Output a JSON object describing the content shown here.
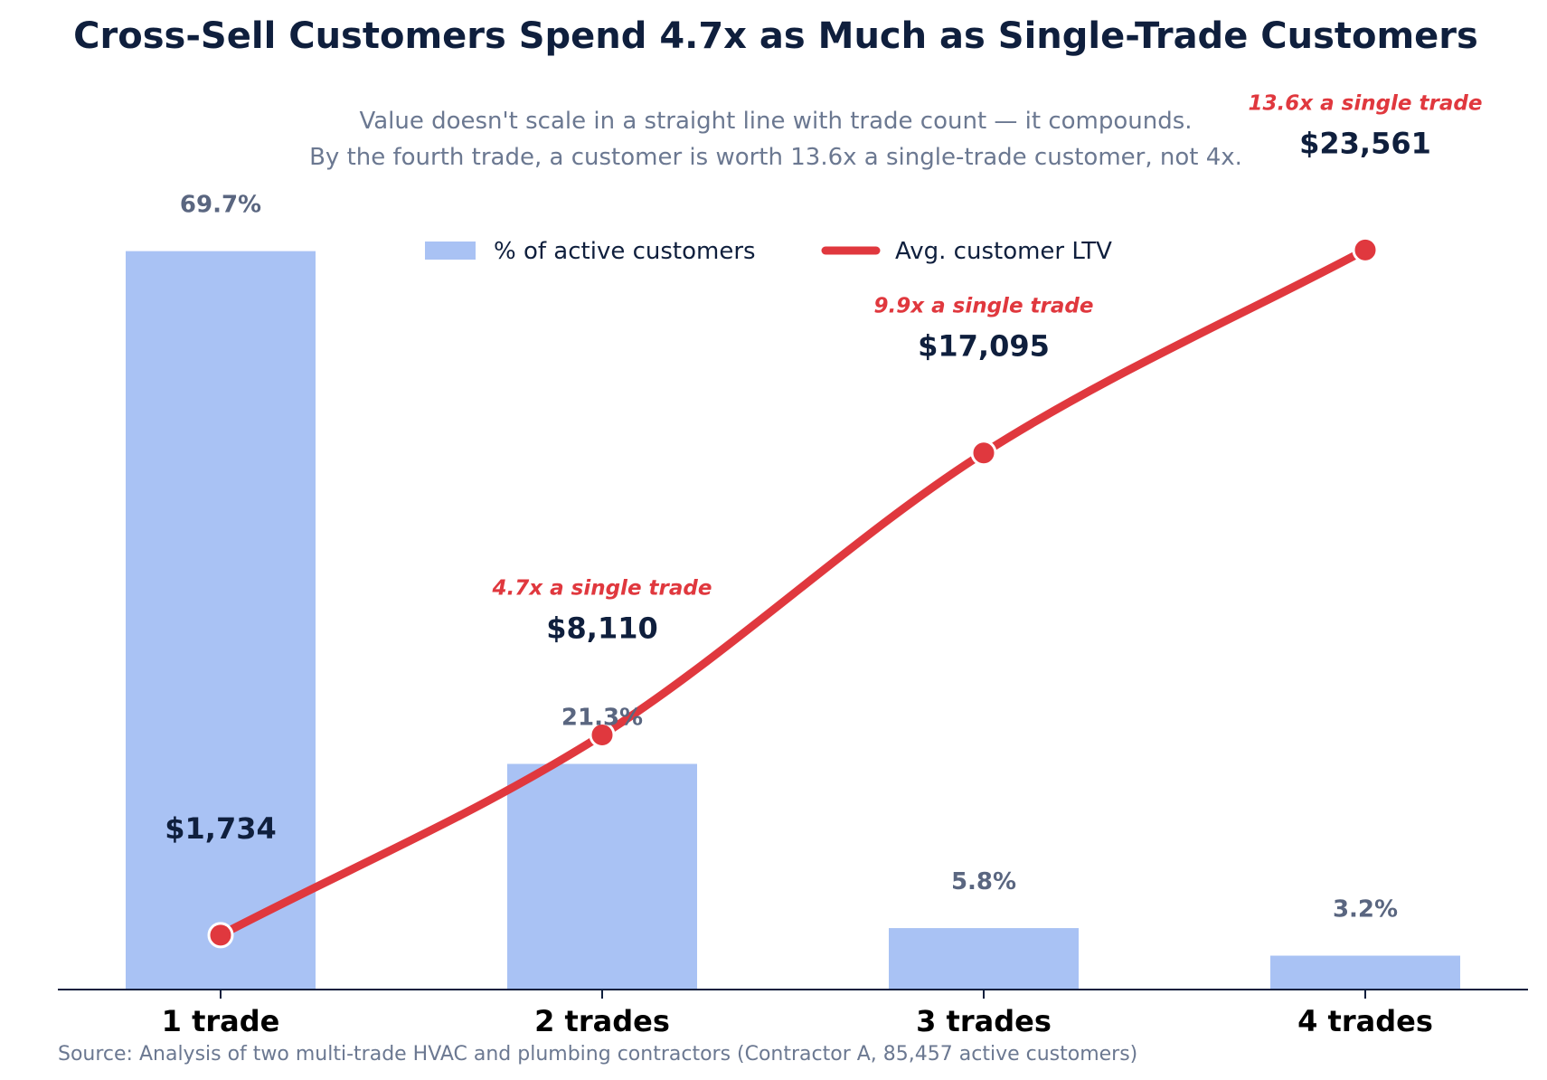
{
  "chart_data": {
    "type": "bar",
    "title": "Cross-Sell Customers Spend 4.7x as Much as Single-Trade Customers",
    "subtitle": [
      "Value doesn't scale in a straight line with trade count — it compounds.",
      "By the fourth trade, a customer is worth 13.6x a single-trade customer, not 4x."
    ],
    "categories": [
      "1 trade",
      "2 trades",
      "3 trades",
      "4 trades"
    ],
    "legend": {
      "placement": "top-center",
      "entries": [
        "% of active customers",
        "Avg. customer LTV"
      ]
    },
    "series": [
      {
        "name": "% of active customers",
        "type": "bar",
        "values": [
          69.7,
          21.3,
          5.8,
          3.2
        ],
        "labels": [
          "69.7%",
          "21.3%",
          "5.8%",
          "3.2%"
        ],
        "color": "#a9c2f4",
        "ylim": [
          0,
          80
        ]
      },
      {
        "name": "Avg. customer LTV",
        "type": "line",
        "values": [
          1734,
          8110,
          17095,
          23561
        ],
        "labels": [
          "$1,734",
          "$8,110",
          "$17,095",
          "$23,561"
        ],
        "color": "#e0383e",
        "ylim": [
          0,
          27000
        ]
      }
    ],
    "annotations": [
      "",
      "4.7x a single trade",
      "9.9x a single trade",
      "13.6x a single trade"
    ],
    "grid": false,
    "source": "Source: Analysis of two multi-trade HVAC and plumbing contractors (Contractor A, 85,457 active customers)"
  }
}
